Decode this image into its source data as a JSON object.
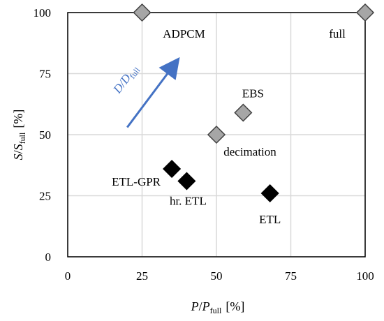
{
  "chart_data": {
    "type": "scatter",
    "xlim": [
      0,
      100
    ],
    "ylim": [
      0,
      100
    ],
    "x_ticks": [
      "0",
      "25",
      "50",
      "75",
      "100"
    ],
    "y_ticks": [
      "0",
      "25",
      "50",
      "75",
      "100"
    ],
    "grid": true,
    "xlabel": {
      "main": "P",
      "sep": "/",
      "sub_main": "P",
      "sub": "full",
      "unit": "[%]"
    },
    "ylabel": {
      "main": "S",
      "sep": "/",
      "sub_main": "S",
      "sub": "full",
      "unit": "[%]"
    },
    "points": [
      {
        "label": "ADPCM",
        "x": 25,
        "y": 100,
        "color": "#a6a6a6"
      },
      {
        "label": "full",
        "x": 100,
        "y": 100,
        "color": "#a6a6a6"
      },
      {
        "label": "EBS",
        "x": 59,
        "y": 59,
        "color": "#a6a6a6"
      },
      {
        "label": "decimation",
        "x": 50,
        "y": 50,
        "color": "#a6a6a6"
      },
      {
        "label": "ETL-GPR",
        "x": 35,
        "y": 36,
        "color": "#000000"
      },
      {
        "label": "hr. ETL",
        "x": 40,
        "y": 31,
        "color": "#000000"
      },
      {
        "label": "ETL",
        "x": 68,
        "y": 26,
        "color": "#000000"
      }
    ],
    "annotation": {
      "text_main": "D",
      "text_sep": "/",
      "text_sub_main": "D",
      "text_sub": "full",
      "from": [
        20,
        53
      ],
      "to": [
        36,
        79
      ],
      "color": "#4472c4"
    }
  }
}
